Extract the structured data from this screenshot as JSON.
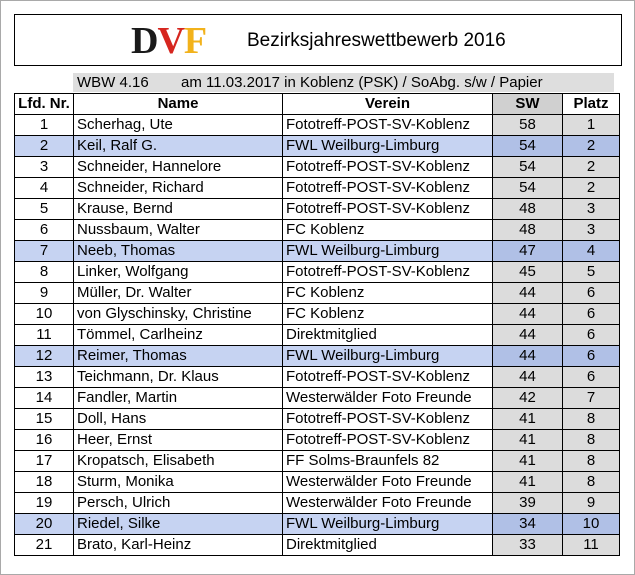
{
  "header": {
    "logo": {
      "letters": [
        "D",
        "V",
        "F"
      ],
      "colors": [
        "#1a1a1a",
        "#d6261f",
        "#f2b21b"
      ]
    },
    "title": "Bezirksjahreswettbewerb 2016"
  },
  "subheader": {
    "wbw": "WBW 4.16",
    "details": "am 11.03.2017 in Koblenz (PSK)  /  SoAbg. s/w / Papier"
  },
  "table": {
    "columns": [
      "Lfd. Nr.",
      "Name",
      "Verein",
      "SW",
      "Platz"
    ],
    "highlight_color": "#c6d3f2",
    "rows": [
      {
        "nr": "1",
        "name": "Scherhag, Ute",
        "verein": "Fototreff-POST-SV-Koblenz",
        "sw": "58",
        "platz": "1",
        "highlight": false
      },
      {
        "nr": "2",
        "name": "Keil, Ralf G.",
        "verein": "FWL Weilburg-Limburg",
        "sw": "54",
        "platz": "2",
        "highlight": true
      },
      {
        "nr": "3",
        "name": "Schneider, Hannelore",
        "verein": "Fototreff-POST-SV-Koblenz",
        "sw": "54",
        "platz": "2",
        "highlight": false
      },
      {
        "nr": "4",
        "name": "Schneider, Richard",
        "verein": "Fototreff-POST-SV-Koblenz",
        "sw": "54",
        "platz": "2",
        "highlight": false
      },
      {
        "nr": "5",
        "name": "Krause, Bernd",
        "verein": "Fototreff-POST-SV-Koblenz",
        "sw": "48",
        "platz": "3",
        "highlight": false
      },
      {
        "nr": "6",
        "name": "Nussbaum, Walter",
        "verein": "FC Koblenz",
        "sw": "48",
        "platz": "3",
        "highlight": false
      },
      {
        "nr": "7",
        "name": "Neeb, Thomas",
        "verein": "FWL Weilburg-Limburg",
        "sw": "47",
        "platz": "4",
        "highlight": true
      },
      {
        "nr": "8",
        "name": "Linker, Wolfgang",
        "verein": "Fototreff-POST-SV-Koblenz",
        "sw": "45",
        "platz": "5",
        "highlight": false
      },
      {
        "nr": "9",
        "name": "Müller, Dr. Walter",
        "verein": "FC Koblenz",
        "sw": "44",
        "platz": "6",
        "highlight": false
      },
      {
        "nr": "10",
        "name": "von Glyschinsky, Christine",
        "verein": "FC Koblenz",
        "sw": "44",
        "platz": "6",
        "highlight": false
      },
      {
        "nr": "11",
        "name": "Tömmel, Carlheinz",
        "verein": "Direktmitglied",
        "sw": "44",
        "platz": "6",
        "highlight": false
      },
      {
        "nr": "12",
        "name": "Reimer, Thomas",
        "verein": "FWL Weilburg-Limburg",
        "sw": "44",
        "platz": "6",
        "highlight": true
      },
      {
        "nr": "13",
        "name": "Teichmann, Dr. Klaus",
        "verein": "Fototreff-POST-SV-Koblenz",
        "sw": "44",
        "platz": "6",
        "highlight": false
      },
      {
        "nr": "14",
        "name": "Fandler, Martin",
        "verein": "Westerwälder Foto Freunde",
        "sw": "42",
        "platz": "7",
        "highlight": false
      },
      {
        "nr": "15",
        "name": "Doll, Hans",
        "verein": "Fototreff-POST-SV-Koblenz",
        "sw": "41",
        "platz": "8",
        "highlight": false
      },
      {
        "nr": "16",
        "name": "Heer, Ernst",
        "verein": "Fototreff-POST-SV-Koblenz",
        "sw": "41",
        "platz": "8",
        "highlight": false
      },
      {
        "nr": "17",
        "name": "Kropatsch, Elisabeth",
        "verein": "FF Solms-Braunfels 82",
        "sw": "41",
        "platz": "8",
        "highlight": false
      },
      {
        "nr": "18",
        "name": "Sturm, Monika",
        "verein": "Westerwälder Foto Freunde",
        "sw": "41",
        "platz": "8",
        "highlight": false
      },
      {
        "nr": "19",
        "name": "Persch, Ulrich",
        "verein": "Westerwälder Foto Freunde",
        "sw": "39",
        "platz": "9",
        "highlight": false
      },
      {
        "nr": "20",
        "name": "Riedel, Silke",
        "verein": "FWL Weilburg-Limburg",
        "sw": "34",
        "platz": "10",
        "highlight": true
      },
      {
        "nr": "21",
        "name": "Brato, Karl-Heinz",
        "verein": "Direktmitglied",
        "sw": "33",
        "platz": "11",
        "highlight": false
      }
    ]
  }
}
